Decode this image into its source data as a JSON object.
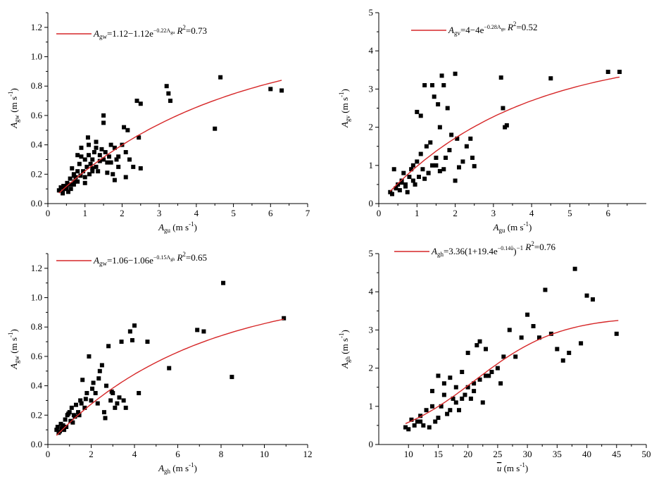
{
  "chart_data": [
    {
      "type": "scatter",
      "panel": "top-left",
      "xlabel": {
        "base": "A",
        "sub": "gu",
        "unit": "(m s",
        "sup": "-1",
        "close": ")"
      },
      "ylabel": {
        "base": "A",
        "sub": "gw",
        "unit": "(m s",
        "sup": "-1",
        "close": ")"
      },
      "xlim": [
        0,
        7
      ],
      "ylim": [
        0,
        1.3
      ],
      "xticks": [
        0,
        1,
        2,
        3,
        4,
        5,
        6,
        7
      ],
      "yticks": [
        0.0,
        0.2,
        0.4,
        0.6,
        0.8,
        1.0,
        1.2
      ],
      "ytick_decimals": 1,
      "legend": {
        "lhs": "A",
        "lhs_sub": "gw",
        "eq": "=1.12−1.12e",
        "exp": "−0.22A",
        "exp_sub": "gu",
        "r2_label": "R",
        "r2_sup": "2",
        "r2_value": "=0.73"
      },
      "fit": {
        "model": "exp",
        "a": 1.12,
        "b": 1.12,
        "c": 0.22,
        "xrange": [
          0.3,
          6.3
        ]
      },
      "series": [
        {
          "name": "observations",
          "x": [
            0.3,
            0.35,
            0.4,
            0.42,
            0.45,
            0.5,
            0.52,
            0.55,
            0.6,
            0.62,
            0.65,
            0.7,
            0.7,
            0.72,
            0.75,
            0.8,
            0.8,
            0.85,
            0.88,
            0.9,
            0.95,
            1.0,
            1.0,
            1.05,
            1.08,
            1.1,
            1.12,
            1.15,
            1.2,
            1.2,
            1.25,
            1.3,
            1.3,
            1.35,
            1.4,
            1.45,
            1.5,
            1.5,
            1.55,
            1.6,
            1.65,
            1.7,
            1.75,
            1.8,
            1.85,
            1.9,
            2.0,
            2.05,
            2.1,
            2.15,
            2.2,
            2.3,
            2.4,
            2.45,
            2.5,
            3.2,
            3.25,
            3.3,
            4.5,
            4.65,
            6.0,
            6.3,
            0.6,
            0.9,
            1.1,
            1.3,
            1.5,
            1.0,
            1.8,
            2.1,
            0.5,
            0.7,
            1.2,
            1.4,
            1.6,
            2.5,
            0.8,
            1.7,
            0.4,
            1.9
          ],
          "y": [
            0.09,
            0.11,
            0.08,
            0.12,
            0.1,
            0.1,
            0.14,
            0.08,
            0.17,
            0.1,
            0.24,
            0.13,
            0.2,
            0.15,
            0.18,
            0.22,
            0.15,
            0.27,
            0.19,
            0.38,
            0.22,
            0.3,
            0.18,
            0.25,
            0.45,
            0.33,
            0.2,
            0.27,
            0.3,
            0.22,
            0.35,
            0.25,
            0.42,
            0.22,
            0.33,
            0.37,
            0.6,
            0.3,
            0.35,
            0.28,
            0.32,
            0.4,
            0.2,
            0.38,
            0.3,
            0.25,
            0.4,
            0.52,
            0.35,
            0.5,
            0.3,
            0.25,
            0.7,
            0.45,
            0.68,
            0.8,
            0.75,
            0.7,
            0.51,
            0.86,
            0.78,
            0.77,
            0.13,
            0.32,
            0.4,
            0.38,
            0.55,
            0.14,
            0.16,
            0.18,
            0.12,
            0.19,
            0.24,
            0.29,
            0.21,
            0.24,
            0.33,
            0.28,
            0.07,
            0.32
          ]
        }
      ]
    },
    {
      "type": "scatter",
      "panel": "top-right",
      "xlabel": {
        "base": "A",
        "sub": "gu",
        "unit": "(m s",
        "sup": "-1",
        "close": ")"
      },
      "ylabel": {
        "base": "A",
        "sub": "gv",
        "unit": "(m s",
        "sup": "-1",
        "close": ")"
      },
      "xlim": [
        0,
        7
      ],
      "ylim": [
        0,
        5
      ],
      "xticks": [
        0,
        1,
        2,
        3,
        4,
        5,
        6
      ],
      "yticks": [
        0,
        1,
        2,
        3,
        4,
        5
      ],
      "ytick_decimals": 0,
      "legend": {
        "lhs": "A",
        "lhs_sub": "gv",
        "eq": "=4−4e",
        "exp": "−0.28A",
        "exp_sub": "gu",
        "r2_label": "R",
        "r2_sup": "2",
        "r2_value": "=0.52"
      },
      "fit": {
        "model": "exp",
        "a": 4,
        "b": 4,
        "c": 0.28,
        "xrange": [
          0.3,
          6.3
        ]
      },
      "series": [
        {
          "name": "observations",
          "x": [
            0.3,
            0.35,
            0.4,
            0.45,
            0.5,
            0.55,
            0.6,
            0.65,
            0.7,
            0.75,
            0.8,
            0.85,
            0.9,
            0.95,
            1.0,
            1.05,
            1.1,
            1.15,
            1.2,
            1.25,
            1.3,
            1.35,
            1.4,
            1.45,
            1.5,
            1.55,
            1.6,
            1.65,
            1.7,
            1.75,
            1.8,
            1.85,
            1.9,
            2.0,
            2.05,
            2.1,
            2.2,
            2.3,
            2.4,
            2.45,
            2.5,
            3.2,
            3.25,
            3.3,
            3.35,
            4.5,
            6.0,
            6.3,
            0.6,
            0.9,
            1.1,
            1.3,
            1.5,
            1.0,
            1.7,
            2.0,
            0.7,
            1.2,
            1.4,
            1.6
          ],
          "y": [
            0.3,
            0.25,
            0.9,
            0.4,
            0.5,
            0.35,
            0.6,
            0.8,
            0.5,
            0.3,
            0.7,
            0.9,
            1.0,
            0.5,
            2.4,
            0.7,
            1.3,
            0.9,
            3.1,
            1.5,
            0.8,
            1.6,
            3.1,
            2.8,
            1.0,
            2.6,
            2.0,
            3.35,
            3.1,
            1.2,
            2.5,
            1.4,
            1.8,
            3.4,
            1.7,
            0.95,
            1.1,
            1.5,
            1.7,
            1.2,
            0.98,
            3.3,
            2.5,
            2.0,
            2.05,
            3.28,
            3.45,
            3.45,
            0.55,
            0.6,
            2.3,
            0.8,
            1.2,
            1.1,
            0.9,
            0.6,
            0.45,
            0.65,
            1.0,
            0.85
          ]
        }
      ]
    },
    {
      "type": "scatter",
      "panel": "bottom-left",
      "xlabel": {
        "base": "A",
        "sub": "gh",
        "unit": "(m s",
        "sup": "-1",
        "close": ")"
      },
      "ylabel": {
        "base": "A",
        "sub": "gw",
        "unit": "(m s",
        "sup": "-1",
        "close": ")"
      },
      "xlim": [
        0,
        12
      ],
      "ylim": [
        0,
        1.3
      ],
      "xticks": [
        0,
        2,
        4,
        6,
        8,
        10,
        12
      ],
      "yticks": [
        0.0,
        0.2,
        0.4,
        0.6,
        0.8,
        1.0,
        1.2
      ],
      "ytick_decimals": 1,
      "legend": {
        "lhs": "A",
        "lhs_sub": "gw",
        "eq": "=1.06−1.06e",
        "exp": "−0.15A",
        "exp_sub": "gh",
        "r2_label": "R",
        "r2_sup": "2",
        "r2_value": "=0.65"
      },
      "fit": {
        "model": "exp",
        "a": 1.06,
        "b": 1.06,
        "c": 0.15,
        "xrange": [
          0.4,
          10.9
        ]
      },
      "series": [
        {
          "name": "observations",
          "x": [
            0.4,
            0.45,
            0.5,
            0.55,
            0.6,
            0.7,
            0.75,
            0.8,
            0.85,
            0.9,
            1.0,
            1.05,
            1.1,
            1.2,
            1.3,
            1.4,
            1.5,
            1.6,
            1.7,
            1.8,
            1.9,
            2.0,
            2.1,
            2.2,
            2.3,
            2.4,
            2.5,
            2.6,
            2.7,
            2.8,
            2.9,
            3.0,
            3.1,
            3.2,
            3.3,
            3.4,
            3.6,
            3.8,
            3.9,
            4.0,
            4.2,
            4.6,
            5.6,
            6.9,
            7.2,
            8.1,
            8.5,
            10.9,
            1.15,
            1.45,
            1.75,
            2.05,
            2.35,
            2.65,
            2.95,
            3.5,
            0.65,
            0.95,
            1.25,
            1.55
          ],
          "y": [
            0.1,
            0.12,
            0.08,
            0.09,
            0.14,
            0.13,
            0.1,
            0.17,
            0.12,
            0.2,
            0.22,
            0.16,
            0.25,
            0.2,
            0.27,
            0.22,
            0.3,
            0.44,
            0.25,
            0.35,
            0.6,
            0.3,
            0.42,
            0.35,
            0.28,
            0.5,
            0.54,
            0.22,
            0.4,
            0.67,
            0.3,
            0.35,
            0.25,
            0.28,
            0.32,
            0.7,
            0.25,
            0.77,
            0.71,
            0.81,
            0.35,
            0.7,
            0.52,
            0.78,
            0.77,
            1.1,
            0.46,
            0.86,
            0.15,
            0.2,
            0.31,
            0.38,
            0.45,
            0.18,
            0.36,
            0.3,
            0.11,
            0.21,
            0.19,
            0.28
          ]
        }
      ]
    },
    {
      "type": "scatter",
      "panel": "bottom-right",
      "xlabel": {
        "base": "u",
        "sub": "",
        "overline": true,
        "unit": "(m s",
        "sup": "-1",
        "close": ")"
      },
      "ylabel": {
        "base": "A",
        "sub": "gh",
        "unit": "(m s",
        "sup": "-1",
        "close": ")"
      },
      "xlim": [
        5,
        50
      ],
      "ylim": [
        0,
        5
      ],
      "xticks": [
        10,
        15,
        20,
        25,
        30,
        35,
        40,
        45,
        50
      ],
      "yticks": [
        0,
        1,
        2,
        3,
        4,
        5
      ],
      "ytick_decimals": 0,
      "legend": {
        "lhs": "A",
        "lhs_sub": "gh",
        "eq": "=3.36(1+19.4e",
        "exp": "−0.14ū",
        "exp_sub": "",
        "tail": ")",
        "tail_sup": "−1",
        "r2_label": "R",
        "r2_sup": "2",
        "r2_value": "=0.76"
      },
      "fit": {
        "model": "logistic",
        "a": 3.36,
        "b": 19.4,
        "c": 0.14,
        "xrange": [
          9.5,
          45.3
        ]
      },
      "series": [
        {
          "name": "observations",
          "x": [
            9.5,
            10,
            10.5,
            11,
            11.5,
            12,
            12.5,
            13,
            13.5,
            14,
            14.5,
            15,
            15.5,
            16,
            16.5,
            17,
            17.5,
            18,
            18.5,
            19,
            19.5,
            20,
            20.5,
            21,
            21.5,
            22,
            22.5,
            23,
            23.5,
            24,
            25,
            25.5,
            26,
            27,
            28,
            29,
            30,
            31,
            32,
            33,
            34,
            35,
            36,
            37,
            38,
            39,
            40,
            41,
            45,
            14,
            16,
            18,
            20,
            22,
            12,
            15,
            17,
            19,
            21,
            23
          ],
          "y": [
            0.45,
            0.4,
            0.65,
            0.5,
            0.6,
            0.75,
            0.5,
            0.9,
            0.45,
            1.4,
            0.6,
            1.8,
            1.0,
            1.6,
            0.8,
            1.75,
            1.2,
            1.5,
            0.9,
            1.9,
            1.3,
            2.4,
            1.2,
            1.6,
            2.6,
            2.7,
            1.1,
            2.5,
            1.8,
            1.9,
            2.0,
            1.6,
            2.3,
            3.0,
            2.3,
            2.8,
            3.4,
            3.1,
            2.8,
            4.05,
            2.9,
            2.5,
            2.2,
            2.4,
            4.6,
            2.65,
            3.9,
            3.8,
            2.9,
            1.0,
            1.3,
            1.1,
            1.5,
            1.7,
            0.6,
            0.7,
            0.9,
            1.2,
            1.4,
            1.8
          ]
        }
      ]
    }
  ]
}
